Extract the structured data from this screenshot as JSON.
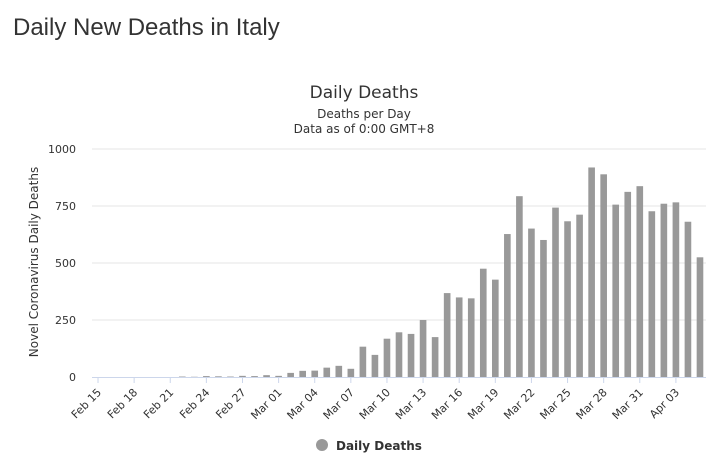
{
  "page": {
    "title": "Daily New Deaths in Italy"
  },
  "colors": {
    "bar": "#999999",
    "grid": "#e6e6e6",
    "axis": "#ccd6eb"
  },
  "chart_data": {
    "type": "bar",
    "title": "Daily Deaths",
    "subtitle": [
      "Deaths per Day",
      "Data as of 0:00 GMT+8"
    ],
    "ylabel": "Novel Coronavirus Daily Deaths",
    "xlabel": "",
    "ylim": [
      0,
      1000
    ],
    "yticks": [
      0,
      250,
      500,
      750,
      1000
    ],
    "grid": true,
    "legend_position": "bottom-center",
    "xtick_labels": [
      "Feb 15",
      "Feb 18",
      "Feb 21",
      "Feb 24",
      "Feb 27",
      "Mar 01",
      "Mar 04",
      "Mar 07",
      "Mar 10",
      "Mar 13",
      "Mar 16",
      "Mar 19",
      "Mar 22",
      "Mar 25",
      "Mar 28",
      "Mar 31",
      "Apr 03"
    ],
    "categories": [
      "Feb 15",
      "Feb 16",
      "Feb 17",
      "Feb 18",
      "Feb 19",
      "Feb 20",
      "Feb 21",
      "Feb 22",
      "Feb 23",
      "Feb 24",
      "Feb 25",
      "Feb 26",
      "Feb 27",
      "Feb 28",
      "Feb 29",
      "Mar 01",
      "Mar 02",
      "Mar 03",
      "Mar 04",
      "Mar 05",
      "Mar 06",
      "Mar 07",
      "Mar 08",
      "Mar 09",
      "Mar 10",
      "Mar 11",
      "Mar 12",
      "Mar 13",
      "Mar 14",
      "Mar 15",
      "Mar 16",
      "Mar 17",
      "Mar 18",
      "Mar 19",
      "Mar 20",
      "Mar 21",
      "Mar 22",
      "Mar 23",
      "Mar 24",
      "Mar 25",
      "Mar 26",
      "Mar 27",
      "Mar 28",
      "Mar 29",
      "Mar 30",
      "Mar 31",
      "Apr 01",
      "Apr 02",
      "Apr 03",
      "Apr 04",
      "Apr 05"
    ],
    "series": [
      {
        "name": "Daily Deaths",
        "values": [
          0,
          0,
          0,
          0,
          0,
          0,
          0,
          2,
          1,
          4,
          3,
          2,
          5,
          4,
          8,
          5,
          18,
          27,
          28,
          41,
          49,
          36,
          133,
          97,
          168,
          196,
          189,
          250,
          175,
          368,
          349,
          345,
          475,
          427,
          627,
          793,
          651,
          601,
          743,
          683,
          712,
          919,
          889,
          756,
          812,
          837,
          727,
          760,
          766,
          681,
          525
        ]
      }
    ]
  }
}
